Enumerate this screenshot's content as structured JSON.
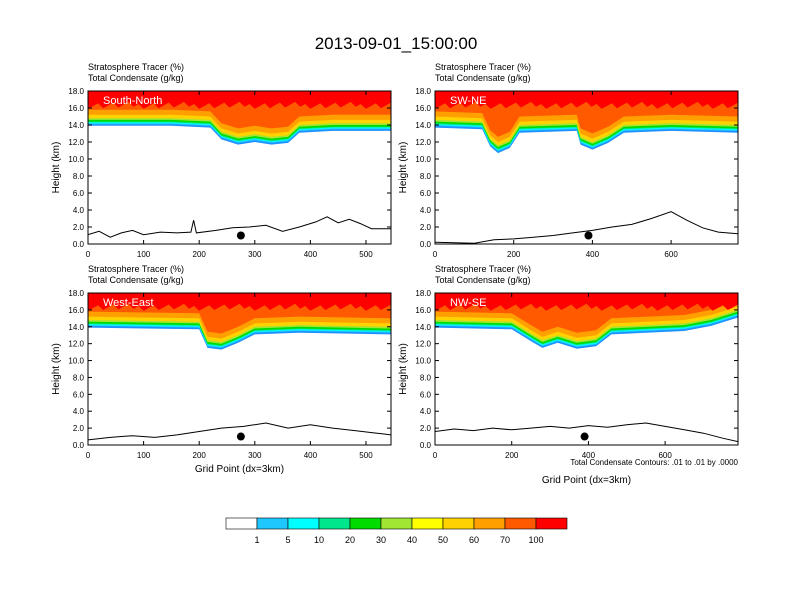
{
  "title": "2013-09-01_15:00:00",
  "palette": {
    "levels": [
      "1",
      "5",
      "10",
      "20",
      "30",
      "40",
      "50",
      "60",
      "70",
      "100"
    ],
    "colors": [
      "#ffffff",
      "#1e90ff",
      "#1ec8ff",
      "#00ffff",
      "#00e68c",
      "#00dc00",
      "#a0e632",
      "#ffff00",
      "#ffd200",
      "#ffa000",
      "#ff5a00",
      "#ff0000"
    ]
  },
  "footnote": "Total Condensate Contours: .01 to .01 by .0000",
  "chart_data": [
    {
      "type": "contour-cross-section",
      "name": "South-North",
      "label1": "Stratosphere Tracer   (%)",
      "label2": "Total Condensate   (g/kg)",
      "ylabel": "Height (km)",
      "xlabel": "",
      "xlim": [
        0,
        545
      ],
      "ylim": [
        0,
        18
      ],
      "xticks": [
        "0",
        "100",
        "200",
        "300",
        "400",
        "500"
      ],
      "xtick_vals": [
        0,
        100,
        200,
        300,
        400,
        500
      ],
      "yticks": [
        "0.0",
        "2.0",
        "4.0",
        "6.0",
        "8.0",
        "10.0",
        "12.0",
        "14.0",
        "16.0",
        "18.0"
      ],
      "marker": [
        275,
        1.0
      ],
      "tracer_base": [
        [
          0,
          13.4
        ],
        [
          150,
          13.4
        ],
        [
          220,
          13.2
        ],
        [
          240,
          11.8
        ],
        [
          270,
          11.2
        ],
        [
          300,
          11.5
        ],
        [
          330,
          11.2
        ],
        [
          360,
          11.4
        ],
        [
          380,
          12.6
        ],
        [
          440,
          12.8
        ],
        [
          545,
          12.8
        ]
      ],
      "terrain": [
        [
          0,
          1.1
        ],
        [
          20,
          1.5
        ],
        [
          40,
          0.8
        ],
        [
          60,
          1.3
        ],
        [
          80,
          1.6
        ],
        [
          100,
          1.1
        ],
        [
          130,
          1.4
        ],
        [
          160,
          1.3
        ],
        [
          185,
          1.4
        ],
        [
          190,
          2.8
        ],
        [
          195,
          1.3
        ],
        [
          230,
          1.6
        ],
        [
          260,
          1.9
        ],
        [
          290,
          2.0
        ],
        [
          320,
          2.2
        ],
        [
          350,
          1.5
        ],
        [
          380,
          2.0
        ],
        [
          410,
          2.6
        ],
        [
          430,
          3.2
        ],
        [
          450,
          2.5
        ],
        [
          470,
          2.9
        ],
        [
          490,
          2.4
        ],
        [
          510,
          1.8
        ],
        [
          545,
          1.8
        ]
      ]
    },
    {
      "type": "contour-cross-section",
      "name": "SW-NE",
      "label1": "Stratosphere Tracer   (%)",
      "label2": "Total Condensate   (g/kg)",
      "ylabel": "Height (km)",
      "xlabel": "",
      "xlim": [
        0,
        770
      ],
      "ylim": [
        0,
        18
      ],
      "xticks": [
        "0",
        "200",
        "400",
        "600"
      ],
      "xtick_vals": [
        0,
        200,
        400,
        600
      ],
      "yticks": [
        "0.0",
        "2.0",
        "4.0",
        "6.0",
        "8.0",
        "10.0",
        "12.0",
        "14.0",
        "16.0",
        "18.0"
      ],
      "marker": [
        390,
        1.0
      ],
      "tracer_base": [
        [
          0,
          13.2
        ],
        [
          120,
          13.0
        ],
        [
          140,
          11.0
        ],
        [
          160,
          10.2
        ],
        [
          190,
          10.8
        ],
        [
          215,
          12.6
        ],
        [
          360,
          12.8
        ],
        [
          370,
          11.2
        ],
        [
          400,
          10.6
        ],
        [
          440,
          11.4
        ],
        [
          480,
          12.6
        ],
        [
          600,
          12.8
        ],
        [
          770,
          12.6
        ]
      ],
      "terrain": [
        [
          0,
          0.2
        ],
        [
          100,
          0.1
        ],
        [
          150,
          0.5
        ],
        [
          200,
          0.6
        ],
        [
          250,
          0.8
        ],
        [
          300,
          1.0
        ],
        [
          350,
          1.3
        ],
        [
          400,
          1.6
        ],
        [
          450,
          2.0
        ],
        [
          500,
          2.3
        ],
        [
          550,
          3.0
        ],
        [
          600,
          3.8
        ],
        [
          640,
          2.8
        ],
        [
          680,
          1.9
        ],
        [
          720,
          1.4
        ],
        [
          770,
          1.2
        ]
      ]
    },
    {
      "type": "contour-cross-section",
      "name": "West-East",
      "label1": "Stratosphere Tracer   (%)",
      "label2": "Total Condensate   (g/kg)",
      "ylabel": "Height (km)",
      "xlabel": "Grid Point (dx=3km)",
      "xlim": [
        0,
        545
      ],
      "ylim": [
        0,
        18
      ],
      "xticks": [
        "0",
        "100",
        "200",
        "300",
        "400",
        "500"
      ],
      "xtick_vals": [
        0,
        100,
        200,
        300,
        400,
        500
      ],
      "yticks": [
        "0.0",
        "2.0",
        "4.0",
        "6.0",
        "8.0",
        "10.0",
        "12.0",
        "14.0",
        "16.0",
        "18.0"
      ],
      "marker": [
        275,
        1.0
      ],
      "tracer_base": [
        [
          0,
          13.4
        ],
        [
          200,
          13.2
        ],
        [
          215,
          11.0
        ],
        [
          240,
          10.8
        ],
        [
          270,
          11.6
        ],
        [
          300,
          12.6
        ],
        [
          380,
          12.8
        ],
        [
          545,
          12.6
        ]
      ],
      "terrain": [
        [
          0,
          0.6
        ],
        [
          40,
          0.9
        ],
        [
          80,
          1.1
        ],
        [
          120,
          0.9
        ],
        [
          160,
          1.2
        ],
        [
          200,
          1.6
        ],
        [
          240,
          2.0
        ],
        [
          280,
          2.2
        ],
        [
          320,
          2.6
        ],
        [
          360,
          2.0
        ],
        [
          400,
          2.4
        ],
        [
          440,
          2.0
        ],
        [
          480,
          1.7
        ],
        [
          520,
          1.4
        ],
        [
          545,
          1.2
        ]
      ]
    },
    {
      "type": "contour-cross-section",
      "name": "NW-SE",
      "label1": "Stratosphere Tracer   (%)",
      "label2": "Total Condensate   (g/kg)",
      "ylabel": "Height (km)",
      "xlabel": "Grid Point (dx=3km)",
      "xlim": [
        0,
        790
      ],
      "ylim": [
        0,
        18
      ],
      "xticks": [
        "0",
        "200",
        "400",
        "600"
      ],
      "xtick_vals": [
        0,
        200,
        400,
        600
      ],
      "yticks": [
        "0.0",
        "2.0",
        "4.0",
        "6.0",
        "8.0",
        "10.0",
        "12.0",
        "14.0",
        "16.0",
        "18.0"
      ],
      "marker": [
        390,
        1.0
      ],
      "tracer_base": [
        [
          0,
          13.4
        ],
        [
          200,
          13.2
        ],
        [
          250,
          11.8
        ],
        [
          280,
          11.0
        ],
        [
          320,
          11.6
        ],
        [
          370,
          10.9
        ],
        [
          420,
          11.2
        ],
        [
          460,
          12.6
        ],
        [
          650,
          13.0
        ],
        [
          720,
          13.6
        ],
        [
          790,
          14.6
        ]
      ],
      "terrain": [
        [
          0,
          1.6
        ],
        [
          50,
          1.9
        ],
        [
          100,
          1.7
        ],
        [
          150,
          2.0
        ],
        [
          200,
          1.8
        ],
        [
          250,
          2.0
        ],
        [
          300,
          2.2
        ],
        [
          350,
          2.0
        ],
        [
          400,
          2.3
        ],
        [
          450,
          2.1
        ],
        [
          500,
          2.4
        ],
        [
          550,
          2.6
        ],
        [
          600,
          2.2
        ],
        [
          650,
          1.8
        ],
        [
          700,
          1.4
        ],
        [
          750,
          0.8
        ],
        [
          790,
          0.4
        ]
      ]
    }
  ]
}
